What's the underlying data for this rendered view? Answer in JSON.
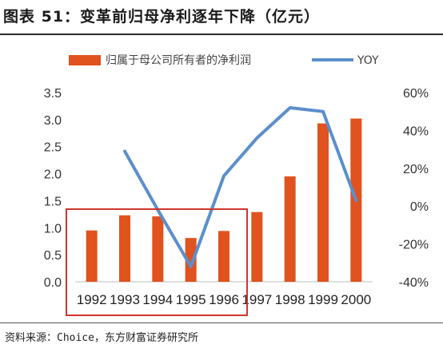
{
  "header": {
    "title": "图表 51：变革前归母净利逐年下降（亿元）"
  },
  "footer": {
    "source": "资料来源：Choice，东方财富证券研究所"
  },
  "chart_data": {
    "type": "bar",
    "title": "图表 51：变革前归母净利逐年下降（亿元）",
    "categories": [
      "1992",
      "1993",
      "1994",
      "1995",
      "1996",
      "1997",
      "1998",
      "1999",
      "2000"
    ],
    "series": [
      {
        "name": "归属于母公司所有者的净利润",
        "type": "bar",
        "axis": "left",
        "color": "#E0521E",
        "values": [
          0.95,
          1.23,
          1.21,
          0.81,
          0.94,
          1.29,
          1.95,
          2.93,
          3.02
        ]
      },
      {
        "name": "YOY",
        "type": "line",
        "axis": "right",
        "color": "#5B8FCB",
        "values": [
          null,
          29,
          -2,
          -32,
          16,
          36,
          52,
          50,
          3
        ]
      }
    ],
    "y_left": {
      "min": 0,
      "max": 3.5,
      "ticks": [
        "0.0",
        "0.5",
        "1.0",
        "1.5",
        "2.0",
        "2.5",
        "3.0",
        "3.5"
      ]
    },
    "y_right": {
      "min": -40,
      "max": 60,
      "ticks": [
        "-40%",
        "-20%",
        "0%",
        "20%",
        "40%",
        "60%"
      ]
    },
    "legend_position": "top",
    "grid": false,
    "highlight_box_color": "#D0352E"
  }
}
